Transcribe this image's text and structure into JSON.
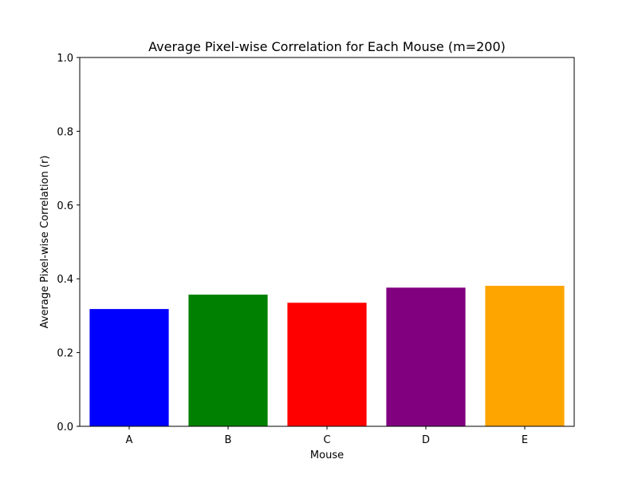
{
  "chart_data": {
    "type": "bar",
    "title": "Average Pixel-wise Correlation for Each Mouse (m=200)",
    "xlabel": "Mouse",
    "ylabel": "Average Pixel-wise Correlation (r)",
    "categories": [
      "A",
      "B",
      "C",
      "D",
      "E"
    ],
    "values": [
      0.318,
      0.357,
      0.335,
      0.376,
      0.381
    ],
    "colors": [
      "#0000ff",
      "#008000",
      "#ff0000",
      "#800080",
      "#ffa500"
    ],
    "ylim": [
      0,
      1.0
    ],
    "yticks": [
      "0.0",
      "0.2",
      "0.4",
      "0.6",
      "0.8",
      "1.0"
    ],
    "grid": false,
    "legend": "none"
  }
}
